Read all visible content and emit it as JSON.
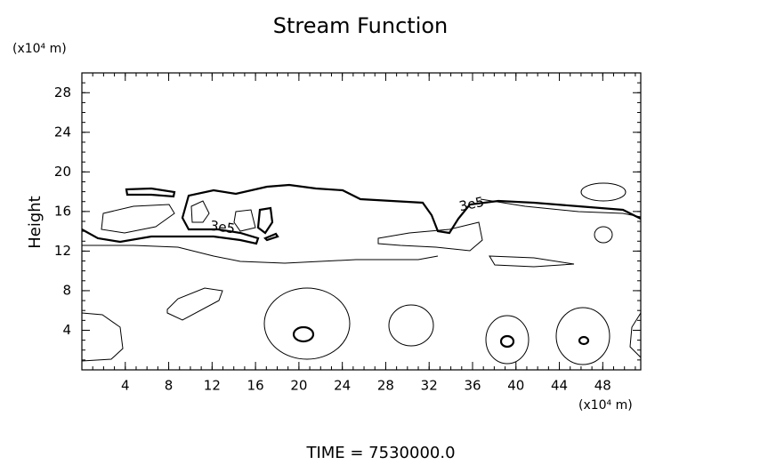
{
  "chart_data": {
    "type": "contour",
    "title": "Stream Function",
    "y_label": "Height",
    "y_unit": "(x10⁴ m)",
    "x_unit": "(x10⁴ m)",
    "footer": "TIME = 7530000.0",
    "contour_labels": [
      "3e5",
      "3e5"
    ],
    "xlim": [
      0,
      51.5
    ],
    "ylim": [
      0,
      30
    ],
    "xticks": [
      4,
      8,
      12,
      16,
      20,
      24,
      28,
      32,
      36,
      40,
      44,
      48
    ],
    "yticks": [
      4,
      8,
      12,
      16,
      20,
      24,
      28
    ]
  }
}
